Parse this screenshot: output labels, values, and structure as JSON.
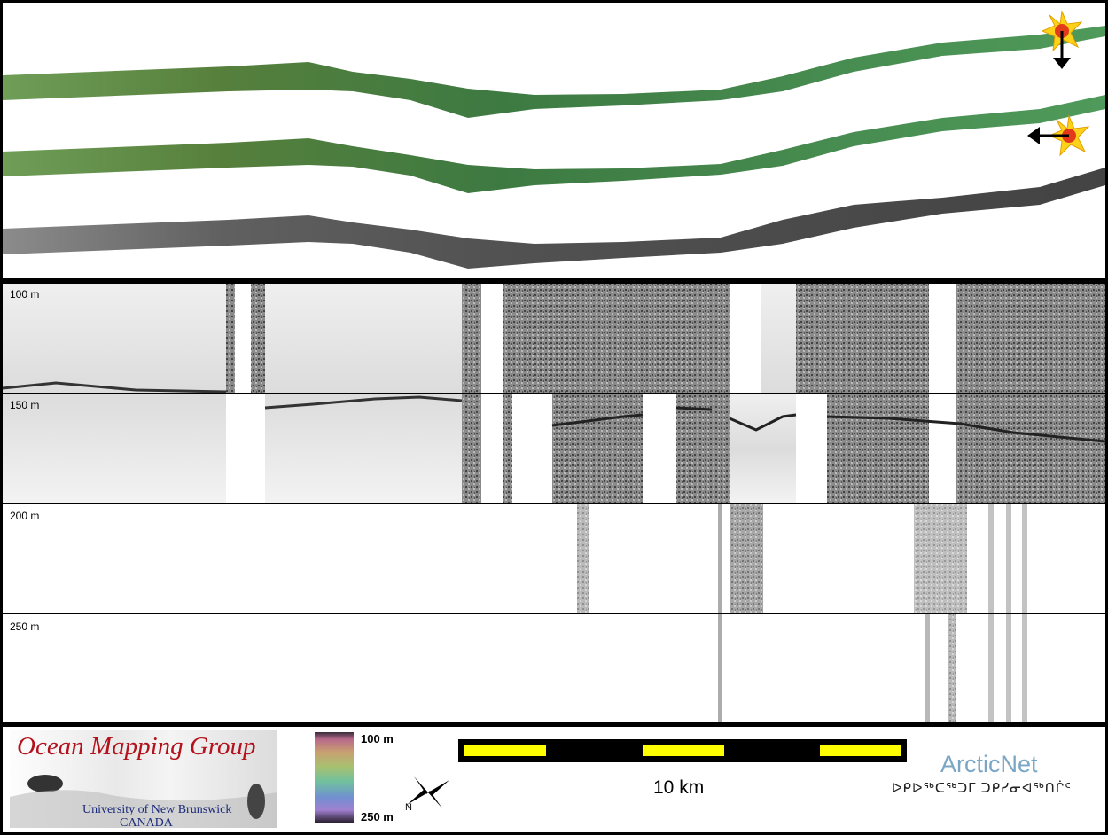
{
  "depth_labels": [
    "100 m",
    "150 m",
    "200 m",
    "250 m"
  ],
  "footer": {
    "omg_title": "Ocean Mapping Group",
    "omg_university": "University of New Brunswick",
    "omg_country": "CANADA",
    "colorbar_top": "100 m",
    "colorbar_bottom": "250 m",
    "scale_label": "10 km",
    "arcticnet": "ArcticNet",
    "arcticnet_inuktitut": "ᐅᑭᐅᖅᑕᖅᑐᒥ ᑐᑭᓯᓂᐊᖅᑎᒌᑦ",
    "compass_letter": "N"
  },
  "colors": {
    "swath_green": "#5f9a56",
    "swath_gray": "#8a8a8a",
    "scale_yellow": "#ffff00",
    "omg_red": "#b3121c",
    "omg_blue": "#1b2a7a",
    "arcticnet_blue": "#7aa6c6"
  },
  "icons": [
    "sun-burst-icon",
    "arrow-down-icon",
    "arrow-left-icon",
    "north-arrow-icon"
  ]
}
